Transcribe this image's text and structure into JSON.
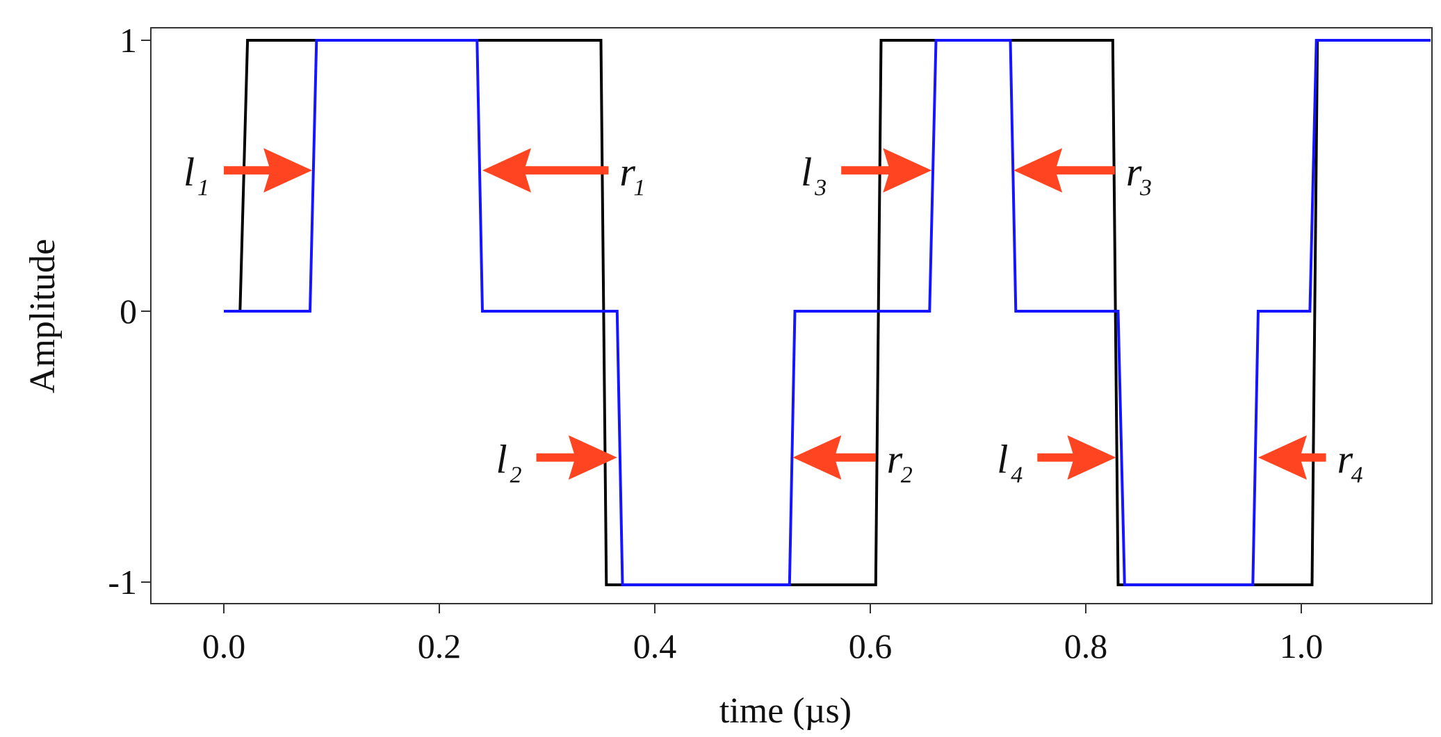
{
  "chart_data": {
    "type": "line",
    "xlabel": "time (µs)",
    "ylabel": "Amplitude",
    "xlim": [
      -0.065,
      1.12
    ],
    "ylim": [
      -1.05,
      1.05
    ],
    "grid": false,
    "x_ticks": [
      {
        "value": 0.0,
        "label": "0.0"
      },
      {
        "value": 0.2,
        "label": "0.2"
      },
      {
        "value": 0.4,
        "label": "0.4"
      },
      {
        "value": 0.6,
        "label": "0.6"
      },
      {
        "value": 0.8,
        "label": "0.8"
      },
      {
        "value": 1.0,
        "label": "1.0"
      }
    ],
    "y_ticks": [
      {
        "value": 1,
        "label": "1"
      },
      {
        "value": 0,
        "label": "0"
      },
      {
        "value": -1,
        "label": "-1"
      }
    ],
    "series": [
      {
        "color": "#000000",
        "x": [
          0.015,
          0.022,
          0.35,
          0.355,
          0.605,
          0.61,
          0.825,
          0.83,
          1.01,
          1.015,
          1.12
        ],
        "y": [
          0,
          1,
          1,
          -1.01,
          -1.01,
          1,
          1,
          -1.01,
          -1.01,
          1,
          1
        ]
      },
      {
        "color": "#1515ff",
        "x": [
          0.0,
          0.08,
          0.086,
          0.235,
          0.24,
          0.365,
          0.37,
          0.525,
          0.53,
          0.655,
          0.661,
          0.73,
          0.735,
          0.83,
          0.836,
          0.955,
          0.96,
          1.008,
          1.014,
          1.12
        ],
        "y": [
          0,
          0,
          1,
          1,
          0,
          0,
          -1.01,
          -1.01,
          0,
          0,
          1,
          1,
          0,
          0,
          -1.01,
          -1.01,
          0,
          0,
          1,
          1
        ]
      }
    ],
    "annotations": [
      {
        "letter": "l",
        "sub": "1",
        "direction": "right",
        "tip_x": 0.082,
        "y": 0.52,
        "shaft_start_x": 0.0
      },
      {
        "letter": "r",
        "sub": "1",
        "direction": "left",
        "tip_x": 0.24,
        "y": 0.52,
        "shaft_start_x": 0.357
      },
      {
        "letter": "l",
        "sub": "2",
        "direction": "right",
        "tip_x": 0.365,
        "y": -0.54,
        "shaft_start_x": 0.29
      },
      {
        "letter": "r",
        "sub": "2",
        "direction": "left",
        "tip_x": 0.528,
        "y": -0.54,
        "shaft_start_x": 0.605
      },
      {
        "letter": "l",
        "sub": "3",
        "direction": "right",
        "tip_x": 0.657,
        "y": 0.52,
        "shaft_start_x": 0.573
      },
      {
        "letter": "r",
        "sub": "3",
        "direction": "left",
        "tip_x": 0.733,
        "y": 0.52,
        "shaft_start_x": 0.827
      },
      {
        "letter": "l",
        "sub": "4",
        "direction": "right",
        "tip_x": 0.828,
        "y": -0.54,
        "shaft_start_x": 0.755
      },
      {
        "letter": "r",
        "sub": "4",
        "direction": "left",
        "tip_x": 0.96,
        "y": -0.54,
        "shaft_start_x": 1.023
      }
    ],
    "arrow_color": "#ff4422"
  }
}
